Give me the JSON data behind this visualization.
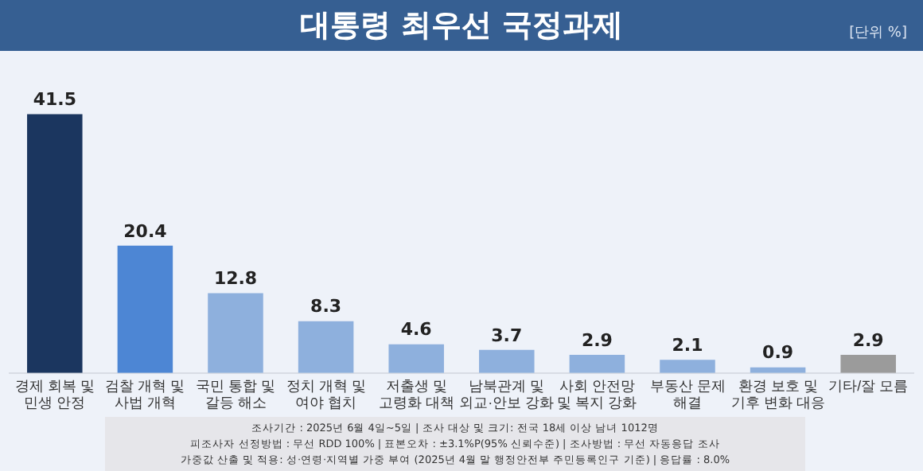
{
  "chart_data": {
    "type": "bar",
    "title": "대통령 최우선 국정과제",
    "subtitle": "[단위 %]",
    "categories": [
      "경제 회복 및\n민생 안정",
      "검찰 개혁 및\n사법 개혁",
      "국민 통합 및\n갈등 해소",
      "정치 개혁 및\n여야 협치",
      "저출생 및\n고령화 대책",
      "남북관계 및\n외교·안보 강화",
      "사회 안전망\n및 복지 강화",
      "부동산 문제\n해결",
      "환경 보호 및\n기후 변화 대응",
      "기타/잘 모름"
    ],
    "values": [
      41.5,
      20.4,
      12.8,
      8.3,
      4.6,
      3.7,
      2.9,
      2.1,
      0.9,
      2.9
    ],
    "colors": [
      "#1b365f",
      "#4d86d4",
      "#8eb0dd",
      "#8eb0dd",
      "#8eb0dd",
      "#8eb0dd",
      "#8eb0dd",
      "#8eb0dd",
      "#8eb0dd",
      "#9b9b9b"
    ],
    "data_labels": true,
    "legend": false,
    "grid": false,
    "annotations": [
      "조사기간 : 2025년 6월 4일~5일 | 조사 대상 및 크기: 전국 18세 이상 남녀 1012명",
      "피조사자 선정방법 : 무선 RDD 100% | 표본오차 : ±3.1%P(95% 신뢰수준) | 조사방법 : 무선 자동응답 조사",
      "가중값 산출 및 적용: 성·연령·지역별 가중 부여 (2025년 4월 말 행정안전부 주민등록인구 기준) | 응답률 : 8.0%"
    ]
  }
}
